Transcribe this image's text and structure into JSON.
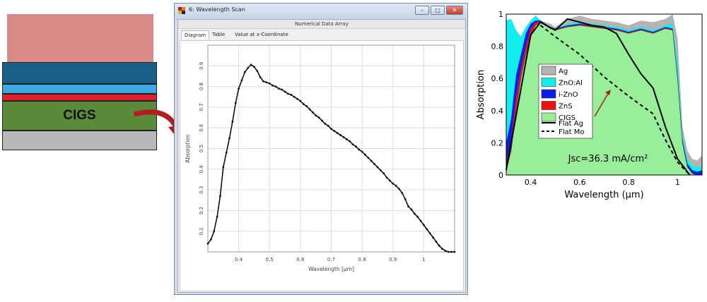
{
  "stack": {
    "cigs_label": "CIGS",
    "colors": {
      "top": "#d98a88",
      "dark_blue": "#1a6189",
      "light_blue": "#3ea9e0",
      "red": "#e0202c",
      "green": "#5b8a3a",
      "gray": "#b8b8b8",
      "arrow": "#b01e20"
    }
  },
  "window": {
    "title": "6: Wavelength Scan",
    "subtitle": "Numerical Data Array",
    "tabs": [
      "Diagram",
      "Table",
      "Value at x-Coordinate"
    ],
    "buttons": {
      "minimize": "–",
      "maximize": "□",
      "close": "✕"
    }
  },
  "chart_data": [
    {
      "type": "line",
      "title": "",
      "xlabel": "Wavelength [µm]",
      "ylabel": "Absorption",
      "xlim": [
        0.3,
        1.1
      ],
      "ylim": [
        0,
        1
      ],
      "grid": true,
      "xticks": [
        "0.4",
        "0.5",
        "0.6",
        "0.7",
        "0.8",
        "0.9",
        "1"
      ],
      "yticks": [
        "0.1",
        "0.2",
        "0.3",
        "0.4",
        "0.5",
        "0.6",
        "0.7",
        "0.8",
        "0.9"
      ],
      "x": [
        0.3,
        0.31,
        0.32,
        0.33,
        0.34,
        0.35,
        0.36,
        0.37,
        0.38,
        0.39,
        0.4,
        0.41,
        0.42,
        0.43,
        0.44,
        0.45,
        0.46,
        0.47,
        0.48,
        0.49,
        0.5,
        0.51,
        0.52,
        0.53,
        0.54,
        0.55,
        0.56,
        0.57,
        0.58,
        0.59,
        0.6,
        0.61,
        0.62,
        0.63,
        0.64,
        0.65,
        0.66,
        0.67,
        0.68,
        0.69,
        0.7,
        0.71,
        0.72,
        0.73,
        0.74,
        0.75,
        0.76,
        0.77,
        0.78,
        0.79,
        0.8,
        0.81,
        0.82,
        0.83,
        0.84,
        0.85,
        0.86,
        0.87,
        0.88,
        0.89,
        0.9,
        0.91,
        0.92,
        0.93,
        0.94,
        0.95,
        0.96,
        0.97,
        0.98,
        0.99,
        1.0,
        1.01,
        1.02,
        1.03,
        1.04,
        1.05,
        1.06,
        1.07,
        1.08,
        1.09,
        1.1
      ],
      "y": [
        0.04,
        0.06,
        0.1,
        0.17,
        0.27,
        0.41,
        0.48,
        0.55,
        0.63,
        0.72,
        0.79,
        0.83,
        0.87,
        0.89,
        0.905,
        0.895,
        0.875,
        0.845,
        0.825,
        0.82,
        0.815,
        0.805,
        0.8,
        0.79,
        0.785,
        0.775,
        0.765,
        0.76,
        0.75,
        0.74,
        0.73,
        0.715,
        0.705,
        0.69,
        0.675,
        0.66,
        0.65,
        0.635,
        0.62,
        0.61,
        0.595,
        0.585,
        0.575,
        0.565,
        0.555,
        0.545,
        0.535,
        0.52,
        0.51,
        0.495,
        0.485,
        0.47,
        0.455,
        0.44,
        0.425,
        0.41,
        0.395,
        0.38,
        0.36,
        0.345,
        0.33,
        0.32,
        0.305,
        0.285,
        0.255,
        0.22,
        0.205,
        0.185,
        0.17,
        0.15,
        0.13,
        0.11,
        0.09,
        0.07,
        0.05,
        0.03,
        0.015,
        0.005,
        0,
        0,
        0
      ]
    },
    {
      "type": "area",
      "title": "",
      "xlabel": "Wavelength (µm)",
      "ylabel": "Absorption",
      "xlim": [
        0.3,
        1.1
      ],
      "ylim": [
        0,
        1
      ],
      "legend": "center-left",
      "xticks": [
        "0.4",
        "0.6",
        "0.8",
        "1"
      ],
      "yticks": [
        "0",
        "0.2",
        "0.4",
        "0.6",
        "0.8",
        "1"
      ],
      "annotation": "Jsc=36.3 mA/cm²",
      "x": [
        0.3,
        0.32,
        0.34,
        0.36,
        0.38,
        0.4,
        0.42,
        0.44,
        0.46,
        0.48,
        0.5,
        0.55,
        0.6,
        0.65,
        0.7,
        0.75,
        0.8,
        0.85,
        0.9,
        0.95,
        0.98,
        1.0,
        1.02,
        1.04,
        1.06,
        1.08,
        1.1
      ],
      "series": [
        {
          "name": "CIGS",
          "color": "#99ee99",
          "stacked_top": [
            0.03,
            0.15,
            0.4,
            0.6,
            0.75,
            0.87,
            0.93,
            0.95,
            0.93,
            0.91,
            0.9,
            0.92,
            0.93,
            0.92,
            0.91,
            0.9,
            0.88,
            0.9,
            0.88,
            0.91,
            0.9,
            0.6,
            0.2,
            0.05,
            0.01,
            0,
            0
          ]
        },
        {
          "name": "ZnS",
          "color": "#ee1111",
          "stacked_top": [
            0.07,
            0.22,
            0.48,
            0.66,
            0.8,
            0.91,
            0.95,
            0.955,
            0.935,
            0.915,
            0.905,
            0.925,
            0.935,
            0.925,
            0.915,
            0.905,
            0.885,
            0.905,
            0.885,
            0.915,
            0.905,
            0.6,
            0.2,
            0.05,
            0.01,
            0,
            0
          ]
        },
        {
          "name": "i-ZnO",
          "color": "#0a1ee8",
          "stacked_top": [
            0.2,
            0.35,
            0.62,
            0.75,
            0.88,
            0.94,
            0.96,
            0.96,
            0.94,
            0.92,
            0.91,
            0.93,
            0.94,
            0.93,
            0.92,
            0.91,
            0.89,
            0.91,
            0.89,
            0.92,
            0.91,
            0.62,
            0.22,
            0.07,
            0.03,
            0.02,
            0.03
          ]
        },
        {
          "name": "ZnO:Al",
          "color": "#11eeee",
          "stacked_top": [
            0.96,
            0.97,
            0.9,
            0.86,
            0.92,
            0.96,
            0.99,
            0.96,
            0.94,
            0.92,
            0.91,
            0.94,
            0.95,
            0.94,
            0.93,
            0.92,
            0.9,
            0.92,
            0.9,
            0.93,
            0.94,
            0.7,
            0.25,
            0.1,
            0.06,
            0.05,
            0.05
          ]
        },
        {
          "name": "Ag",
          "color": "#b4b4b4",
          "stacked_top": [
            0.96,
            0.97,
            0.9,
            0.86,
            0.92,
            0.96,
            0.99,
            0.96,
            0.95,
            0.94,
            0.92,
            0.97,
            0.99,
            0.97,
            0.96,
            0.95,
            0.93,
            0.96,
            0.95,
            0.97,
            1.0,
            0.85,
            0.3,
            0.15,
            0.1,
            0.09,
            0.12
          ]
        }
      ],
      "lines": [
        {
          "name": "Flat Ag",
          "style": "solid",
          "x": [
            0.3,
            0.35,
            0.4,
            0.44,
            0.5,
            0.55,
            0.6,
            0.65,
            0.7,
            0.75,
            0.8,
            0.85,
            0.9,
            0.95,
            1.0,
            1.05
          ],
          "y": [
            0.03,
            0.45,
            0.87,
            0.95,
            0.9,
            0.97,
            0.95,
            0.93,
            0.92,
            0.88,
            0.75,
            0.63,
            0.54,
            0.3,
            0.1,
            0.0
          ]
        },
        {
          "name": "Flat Mo",
          "style": "dashed",
          "x": [
            0.44,
            0.5,
            0.6,
            0.7,
            0.8,
            0.9,
            0.95,
            1.0,
            1.05
          ],
          "y": [
            0.93,
            0.86,
            0.75,
            0.61,
            0.49,
            0.38,
            0.22,
            0.08,
            0.0
          ]
        }
      ]
    }
  ]
}
